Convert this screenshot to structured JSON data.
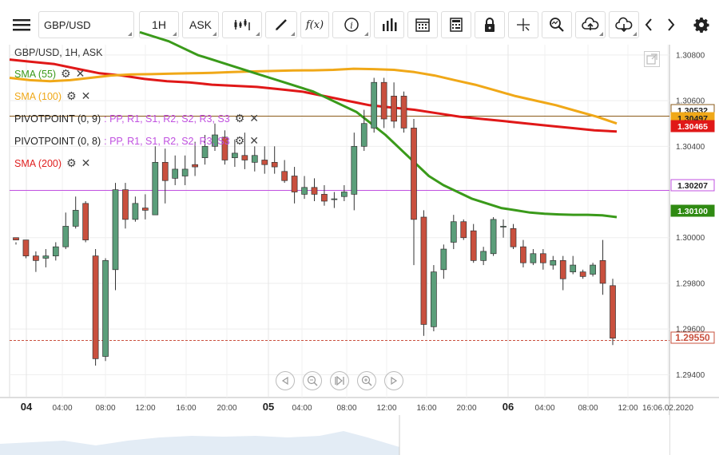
{
  "toolbar": {
    "symbol": "GBP/USD",
    "interval": "1H",
    "price_type": "ASK",
    "fx_label": "f(x)"
  },
  "header": {
    "title": "GBP/USD, 1H, ASK"
  },
  "indicators": [
    {
      "label": "SMA (55)",
      "color": "#3a9a1a"
    },
    {
      "label": "SMA (100)",
      "color": "#f0a818"
    },
    {
      "label": "PIVOTPOINT (0, 9)",
      "color": "#222222",
      "suffix": ": PP, R1, S1, R2, S2, R3, S3"
    },
    {
      "label": "PIVOTPOINT (0, 8)",
      "color": "#222222",
      "suffix": ": PP, R1, S1, R2, S2, R3, S3"
    },
    {
      "label": "SMA (200)",
      "color": "#e02020"
    }
  ],
  "colors": {
    "up": "#5b9e7a",
    "down": "#c9503e",
    "sma55": "#3a9a1a",
    "sma100": "#f0a818",
    "sma200": "#e01818",
    "pivot": "#8a5a18",
    "purple": "#c050e0"
  },
  "price_axis": {
    "ticks": [
      "1.30800",
      "1.30600",
      "1.30400",
      "1.30000",
      "1.29800",
      "1.29600",
      "1.29400"
    ],
    "ymin": 1.293,
    "ymax": 1.3088
  },
  "price_tags": [
    {
      "value": "1.30532",
      "bg": "#ffffff",
      "fg": "#222222",
      "border": "#8a5a18"
    },
    {
      "value": "1.30497",
      "bg": "#f0a818",
      "fg": "#222222",
      "border": "#f0a818"
    },
    {
      "value": "1.30465",
      "bg": "#e01818",
      "fg": "#ffffff",
      "border": "#e01818"
    },
    {
      "value": "1.30207",
      "bg": "#ffffff",
      "fg": "#222222",
      "border": "#c050e0"
    },
    {
      "value": "1.30100",
      "bg": "#2f8a12",
      "fg": "#ffffff",
      "border": "#2f8a12"
    },
    {
      "value": "1.29550",
      "bg": "#ffffff",
      "fg": "#c9503e",
      "border": "#c9503e"
    }
  ],
  "time_axis": [
    {
      "label": "04",
      "day": true
    },
    {
      "label": "04:00"
    },
    {
      "label": "08:00"
    },
    {
      "label": "12:00"
    },
    {
      "label": "16:00"
    },
    {
      "label": "20:00"
    },
    {
      "label": "05",
      "day": true
    },
    {
      "label": "04:00"
    },
    {
      "label": "08:00"
    },
    {
      "label": "12:00"
    },
    {
      "label": "16:00"
    },
    {
      "label": "20:00"
    },
    {
      "label": "06",
      "day": true
    },
    {
      "label": "04:00"
    },
    {
      "label": "08:00"
    },
    {
      "label": "12:00"
    },
    {
      "label": "16:06.02.2020"
    }
  ],
  "chart_data": {
    "type": "candlestick",
    "candles": [
      [
        1.3,
        1.2999,
        1.2998,
        1.2997
      ],
      [
        1.2999,
        1.2992,
        1.2999,
        1.2991
      ],
      [
        1.2992,
        1.299,
        1.2994,
        1.2985
      ],
      [
        1.2991,
        1.2992,
        1.2995,
        1.2987
      ],
      [
        1.2992,
        1.2996,
        1.2998,
        1.299
      ],
      [
        1.2996,
        1.3005,
        1.3011,
        1.2995
      ],
      [
        1.3005,
        1.3012,
        1.3018,
        1.3004
      ],
      [
        1.3015,
        1.2999,
        1.3016,
        1.2998
      ],
      [
        1.2992,
        1.2947,
        1.2995,
        1.2944
      ],
      [
        1.2948,
        1.299,
        1.2991,
        1.2946
      ],
      [
        1.2986,
        1.3021,
        1.3024,
        1.2977
      ],
      [
        1.3021,
        1.3008,
        1.3024,
        1.3004
      ],
      [
        1.3008,
        1.3015,
        1.3018,
        1.3007
      ],
      [
        1.3013,
        1.3012,
        1.3019,
        1.3008
      ],
      [
        1.301,
        1.3033,
        1.304,
        1.301
      ],
      [
        1.3033,
        1.3025,
        1.3039,
        1.3015
      ],
      [
        1.3026,
        1.303,
        1.3036,
        1.3023
      ],
      [
        1.3027,
        1.303,
        1.3036,
        1.3023
      ],
      [
        1.3032,
        1.3031,
        1.3042,
        1.3027
      ],
      [
        1.3035,
        1.304,
        1.3045,
        1.3032
      ],
      [
        1.304,
        1.3045,
        1.305,
        1.3038
      ],
      [
        1.3044,
        1.3034,
        1.3047,
        1.3032
      ],
      [
        1.3035,
        1.3037,
        1.3043,
        1.3031
      ],
      [
        1.3036,
        1.3034,
        1.3046,
        1.303
      ],
      [
        1.3033,
        1.3036,
        1.304,
        1.3029
      ],
      [
        1.3034,
        1.3032,
        1.304,
        1.3028
      ],
      [
        1.3033,
        1.3031,
        1.304,
        1.3028
      ],
      [
        1.3029,
        1.3025,
        1.3034,
        1.3024
      ],
      [
        1.3027,
        1.302,
        1.3031,
        1.3015
      ],
      [
        1.3019,
        1.3022,
        1.3027,
        1.3017
      ],
      [
        1.3022,
        1.3019,
        1.3026,
        1.3016
      ],
      [
        1.3019,
        1.3016,
        1.3023,
        1.3014
      ],
      [
        1.3017,
        1.3017,
        1.302,
        1.3013
      ],
      [
        1.3018,
        1.302,
        1.3023,
        1.3016
      ],
      [
        1.3019,
        1.304,
        1.3046,
        1.3012
      ],
      [
        1.304,
        1.305,
        1.3056,
        1.3038
      ],
      [
        1.3048,
        1.3068,
        1.307,
        1.3046
      ],
      [
        1.3068,
        1.3052,
        1.307,
        1.3048
      ],
      [
        1.3062,
        1.3051,
        1.3068,
        1.3048
      ],
      [
        1.3062,
        1.3048,
        1.3064,
        1.3046
      ],
      [
        1.3048,
        1.3008,
        1.3052,
        1.2988
      ],
      [
        1.3009,
        1.2962,
        1.3012,
        1.2957
      ],
      [
        1.2961,
        1.2985,
        1.2988,
        1.2959
      ],
      [
        1.2986,
        1.2995,
        1.2997,
        1.2982
      ],
      [
        1.2998,
        1.3007,
        1.301,
        1.2995
      ],
      [
        1.3007,
        1.3,
        1.3008,
        1.2999
      ],
      [
        1.3003,
        1.299,
        1.3006,
        1.2989
      ],
      [
        1.299,
        1.2994,
        1.2996,
        1.2988
      ],
      [
        1.2993,
        1.3008,
        1.3009,
        1.2992
      ],
      [
        1.3005,
        1.3005,
        1.3008,
        1.3
      ],
      [
        1.3004,
        1.2996,
        1.3006,
        1.2995
      ],
      [
        1.2996,
        1.2989,
        1.2999,
        1.2987
      ],
      [
        1.2989,
        1.2993,
        1.2995,
        1.2988
      ],
      [
        1.2993,
        1.2989,
        1.2995,
        1.2986
      ],
      [
        1.2988,
        1.299,
        1.2992,
        1.2986
      ],
      [
        1.299,
        1.2982,
        1.2992,
        1.2977
      ],
      [
        1.2985,
        1.2988,
        1.2992,
        1.2984
      ],
      [
        1.2985,
        1.2983,
        1.2986,
        1.2982
      ],
      [
        1.2984,
        1.2988,
        1.2989,
        1.2983
      ],
      [
        1.299,
        1.298,
        1.2999,
        1.2975
      ],
      [
        1.2979,
        1.2956,
        1.2982,
        1.2953
      ]
    ],
    "sma55": [
      1.309,
      1.3088,
      1.3086,
      1.3083,
      1.308,
      1.3078,
      1.3076,
      1.3074,
      1.3072,
      1.307,
      1.3068,
      1.3066,
      1.3064,
      1.3061,
      1.3058,
      1.3055,
      1.305,
      1.3045,
      1.3039,
      1.3033,
      1.3027,
      1.3023,
      1.302,
      1.3017,
      1.3015,
      1.3013,
      1.3012,
      1.3011,
      1.30105,
      1.30102,
      1.301,
      1.301,
      1.30098,
      1.3009
    ],
    "sma100": [
      1.307,
      1.3069,
      1.30685,
      1.3069,
      1.307,
      1.3071,
      1.30715,
      1.30716,
      1.30718,
      1.3072,
      1.30722,
      1.30725,
      1.30728,
      1.3073,
      1.30732,
      1.30733,
      1.30735,
      1.3074,
      1.30738,
      1.30735,
      1.30725,
      1.3071,
      1.3069,
      1.3067,
      1.30645,
      1.3062,
      1.306,
      1.3058,
      1.30555,
      1.3053,
      1.305
    ],
    "sma200": [
      1.3078,
      1.3077,
      1.3076,
      1.3074,
      1.3072,
      1.3071,
      1.30695,
      1.30685,
      1.3068,
      1.3067,
      1.30665,
      1.3066,
      1.3065,
      1.3064,
      1.3062,
      1.306,
      1.3058,
      1.3057,
      1.3056,
      1.30545,
      1.3053,
      1.3052,
      1.3051,
      1.305,
      1.3049,
      1.3048,
      1.3047,
      1.30465
    ]
  }
}
